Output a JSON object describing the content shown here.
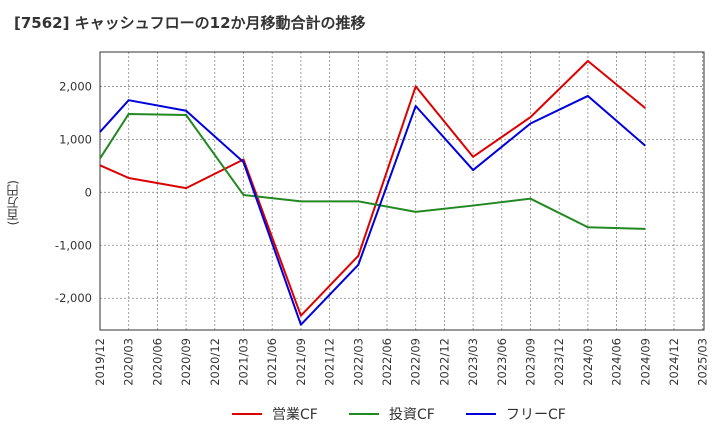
{
  "chart_data": {
    "type": "line",
    "title": "[7562]  キャッシュフローの12か月移動合計の推移",
    "ylabel": "(百万円)",
    "xlabel": "",
    "ylim": [
      -2600,
      2650
    ],
    "yticks": [
      2000,
      1000,
      0,
      -1000,
      -2000
    ],
    "ytick_labels": [
      "2,000",
      "1,000",
      "0",
      "-1,000",
      "-2,000"
    ],
    "categories": [
      "2019/12",
      "2020/03",
      "2020/06",
      "2020/09",
      "2020/12",
      "2021/03",
      "2021/06",
      "2021/09",
      "2021/12",
      "2022/03",
      "2022/06",
      "2022/09",
      "2022/12",
      "2023/03",
      "2023/06",
      "2023/09",
      "2023/12",
      "2024/03",
      "2024/06",
      "2024/09",
      "2024/12",
      "2025/03"
    ],
    "grid": true,
    "legend_position": "bottom",
    "series": [
      {
        "name": "営業CF",
        "color": "#dd0000",
        "values": [
          510,
          270,
          null,
          80,
          null,
          620,
          null,
          -2330,
          null,
          -1200,
          null,
          2000,
          null,
          670,
          null,
          1420,
          null,
          2480,
          null,
          1590,
          null,
          null
        ]
      },
      {
        "name": "投資CF",
        "color": "#228822",
        "values": [
          640,
          1480,
          null,
          1460,
          null,
          -50,
          null,
          -170,
          null,
          -170,
          null,
          -370,
          null,
          -250,
          null,
          -120,
          null,
          -660,
          null,
          -690,
          null,
          null
        ]
      },
      {
        "name": "フリーCF",
        "color": "#0000dd",
        "values": [
          1140,
          1740,
          null,
          1540,
          null,
          570,
          null,
          -2500,
          null,
          -1370,
          null,
          1630,
          null,
          420,
          null,
          1300,
          null,
          1820,
          null,
          880,
          null,
          null
        ]
      }
    ]
  }
}
